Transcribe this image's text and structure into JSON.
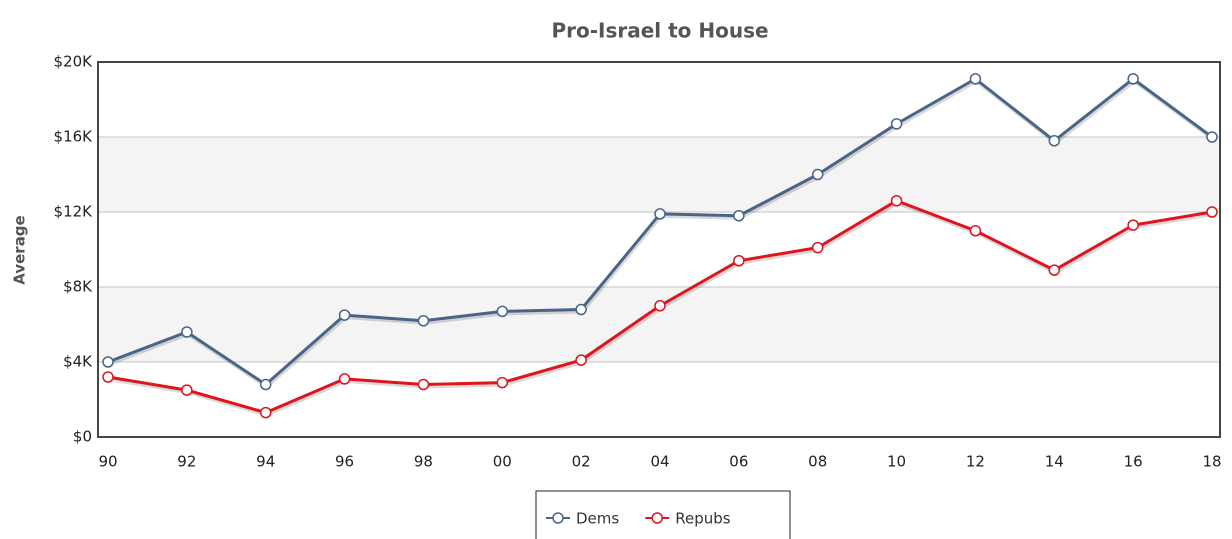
{
  "chart_data": {
    "type": "line",
    "title": "Pro-Israel to House",
    "y_label": "Average",
    "categories": [
      "90",
      "92",
      "94",
      "96",
      "98",
      "00",
      "02",
      "04",
      "06",
      "08",
      "10",
      "12",
      "14",
      "16",
      "18"
    ],
    "series": [
      {
        "name": "Dems",
        "color": "#4a6489",
        "values": [
          4000,
          5600,
          2800,
          6500,
          6200,
          6700,
          6800,
          11900,
          11800,
          14000,
          16700,
          19100,
          15800,
          19100,
          16000
        ]
      },
      {
        "name": "Repubs",
        "color": "#e0141e",
        "values": [
          3200,
          2500,
          1300,
          3100,
          2800,
          2900,
          4100,
          7000,
          9400,
          10100,
          12600,
          11000,
          8900,
          11300,
          12000
        ]
      }
    ],
    "ylim": [
      0,
      20000
    ],
    "yticks": [
      {
        "value": 0,
        "label": "$0"
      },
      {
        "value": 4000,
        "label": "$4K"
      },
      {
        "value": 8000,
        "label": "$8K"
      },
      {
        "value": 12000,
        "label": "$12K"
      },
      {
        "value": 16000,
        "label": "$16K"
      },
      {
        "value": 20000,
        "label": "$20K"
      }
    ],
    "grid": true,
    "legend": "bottom"
  }
}
